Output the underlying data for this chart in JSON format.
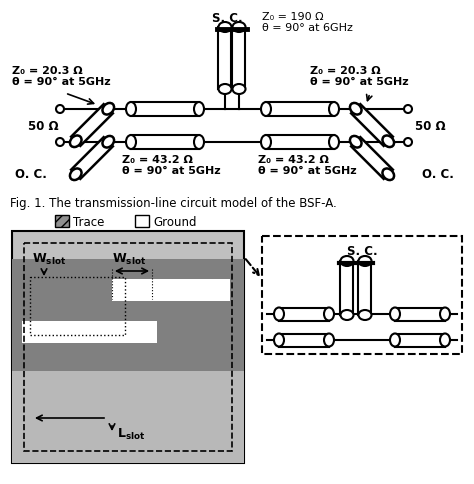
{
  "fig_caption": "Fig. 1. The transmission-line circuit model of the BSF-A.",
  "sc_label": "S. C.",
  "sc_z": "Z₀ = 190 Ω",
  "sc_theta": "θ = 90° at 6GHz",
  "left_z": "Z₀ = 20.3 Ω",
  "left_theta": "θ = 90° at 5GHz",
  "right_z": "Z₀ = 20.3 Ω",
  "right_theta": "θ = 90° at 5GHz",
  "bot_left_z": "Z₀ = 43.2 Ω",
  "bot_left_theta": "θ = 90° at 5GHz",
  "bot_right_z": "Z₀ = 43.2 Ω",
  "bot_right_theta": "θ = 90° at 5GHz",
  "fifty": "50 Ω",
  "oc": "O. C.",
  "trace_label": "Trace",
  "ground_label": "Ground",
  "wslot_label": "W",
  "wslot_sub": "slot",
  "lslot_label": "L",
  "lslot_sub": "slot",
  "sc_inset": "S. C.",
  "bg_white": "#ffffff",
  "gray_light": "#c0c0c0",
  "gray_dark": "#808080",
  "gray_outer": "#d0d0d0"
}
